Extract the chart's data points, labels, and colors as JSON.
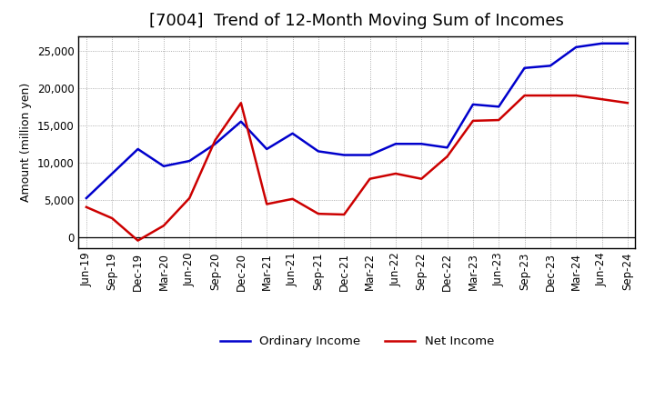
{
  "title": "[7004]  Trend of 12-Month Moving Sum of Incomes",
  "ylabel": "Amount (million yen)",
  "background_color": "#ffffff",
  "plot_bg_color": "#ffffff",
  "grid_color": "#999999",
  "ylim": [
    -1500,
    27000
  ],
  "yticks": [
    0,
    5000,
    10000,
    15000,
    20000,
    25000
  ],
  "x_labels": [
    "Jun-19",
    "Sep-19",
    "Dec-19",
    "Mar-20",
    "Jun-20",
    "Sep-20",
    "Dec-20",
    "Mar-21",
    "Jun-21",
    "Sep-21",
    "Dec-21",
    "Mar-22",
    "Jun-22",
    "Sep-22",
    "Dec-22",
    "Mar-23",
    "Jun-23",
    "Sep-23",
    "Dec-23",
    "Mar-24",
    "Jun-24",
    "Sep-24"
  ],
  "ordinary_income": [
    5200,
    8500,
    11800,
    9500,
    10200,
    12500,
    15500,
    11800,
    13900,
    11500,
    11000,
    11000,
    12500,
    12500,
    12000,
    17800,
    17500,
    22700,
    23000,
    25500,
    26000,
    26000
  ],
  "net_income": [
    4000,
    2500,
    -500,
    1500,
    5200,
    13000,
    18000,
    4400,
    5100,
    3100,
    3000,
    7800,
    8500,
    7800,
    10800,
    15600,
    15700,
    19000,
    19000,
    19000,
    18500,
    18000
  ],
  "line_color_ordinary": "#0000cc",
  "line_color_net": "#cc0000",
  "line_width": 1.8,
  "title_fontsize": 13,
  "label_fontsize": 9,
  "tick_fontsize": 8.5,
  "legend_fontsize": 9.5
}
